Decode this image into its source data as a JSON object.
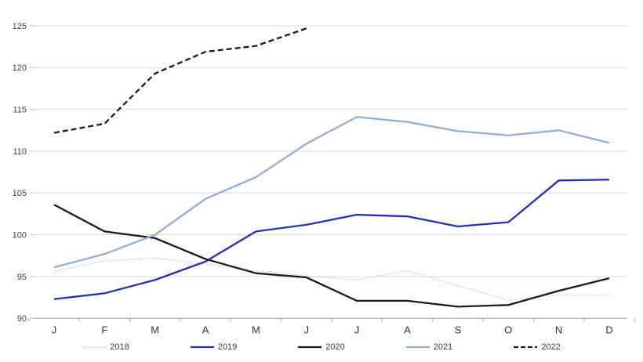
{
  "chart_data": {
    "type": "line",
    "title": "",
    "xlabel": "",
    "ylabel": "",
    "categories": [
      "J",
      "F",
      "M",
      "A",
      "M",
      "J",
      "J",
      "A",
      "S",
      "O",
      "N",
      "D"
    ],
    "y_ticks": [
      90,
      95,
      100,
      105,
      110,
      115,
      120,
      125
    ],
    "ylim": [
      90,
      125
    ],
    "grid": "horizontal",
    "legend_position": "bottom",
    "series": [
      {
        "name": "2018",
        "color": "#b7c9e8",
        "style": "dotted",
        "width": 1.5,
        "values": [
          95.6,
          96.9,
          97.2,
          96.5,
          95.7,
          95.1,
          94.6,
          95.7,
          93.9,
          92.2,
          92.8,
          92.8
        ]
      },
      {
        "name": "2019",
        "color": "#222fb9",
        "style": "solid",
        "width": 2.3,
        "values": [
          92.3,
          93.0,
          94.6,
          96.8,
          100.4,
          101.2,
          102.4,
          102.2,
          101.0,
          101.5,
          106.5,
          106.6
        ]
      },
      {
        "name": "2020",
        "color": "#1a1a1a",
        "style": "solid",
        "width": 2.3,
        "values": [
          103.6,
          100.4,
          99.6,
          97.1,
          95.4,
          94.9,
          92.1,
          92.1,
          91.4,
          91.6,
          93.3,
          94.8
        ]
      },
      {
        "name": "2021",
        "color": "#8faedb",
        "style": "solid",
        "width": 2.3,
        "values": [
          96.1,
          97.7,
          100.0,
          104.3,
          106.9,
          110.9,
          114.1,
          113.5,
          112.4,
          111.9,
          112.5,
          111.0
        ]
      },
      {
        "name": "2022",
        "color": "#1a1a1a",
        "style": "dashed",
        "width": 2.3,
        "values": [
          112.2,
          113.3,
          119.3,
          121.9,
          122.6,
          124.7,
          null,
          null,
          null,
          null,
          null,
          null
        ]
      }
    ]
  },
  "axis_style": {
    "grid_color": "#d9d9d9",
    "axis_color": "#a6a6a6",
    "tick_color": "#bfbfbf",
    "y_label_color": "#404040",
    "x_label_color": "#333333"
  }
}
